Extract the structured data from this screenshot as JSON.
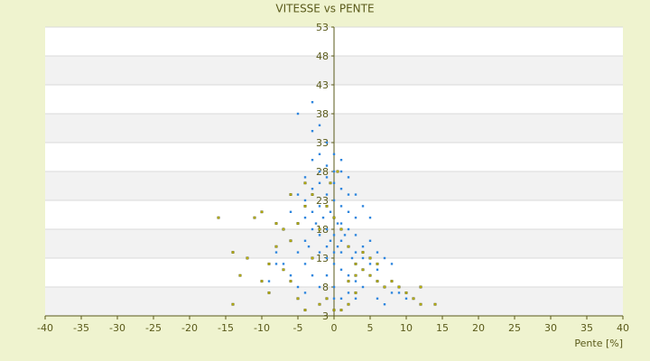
{
  "chart_data": {
    "type": "scatter",
    "title": "VITESSE vs PENTE",
    "x_label": "Pente [%]",
    "xlim": [
      -40,
      40
    ],
    "xticks": [
      -40,
      -35,
      -30,
      -25,
      -20,
      -15,
      -10,
      -5,
      0,
      5,
      10,
      15,
      20,
      25,
      30,
      35,
      40
    ],
    "ylim": [
      3,
      53
    ],
    "yticks": [
      3,
      8,
      13,
      18,
      23,
      28,
      33,
      38,
      43,
      48,
      53
    ],
    "grid": true,
    "series": [
      {
        "color": "#2e86de",
        "x": [
          -3,
          -2,
          -1,
          0,
          1,
          -1,
          0,
          1,
          2,
          -2,
          -3,
          -4,
          0,
          1,
          2,
          3,
          -1,
          -2,
          0,
          1,
          2,
          3,
          4,
          5,
          -3,
          -4,
          -5,
          -2,
          -1,
          0,
          1,
          2,
          3,
          4,
          6,
          7,
          8,
          9,
          10,
          5,
          6,
          4,
          3,
          -1,
          0,
          0,
          -2,
          -3,
          -4,
          -6,
          -5,
          -4,
          -3,
          -2,
          -1,
          0,
          -1,
          -3,
          -2,
          -5,
          -3,
          1,
          2,
          1,
          3,
          4,
          5,
          3,
          2,
          0,
          -2,
          -4,
          -5,
          -6,
          -7,
          -8,
          -7,
          -6,
          -8,
          -5,
          1,
          2,
          3,
          6,
          7,
          4,
          5,
          6,
          7,
          8,
          -0.5,
          0.5,
          -1.5,
          1.5,
          0.5,
          -0.5,
          2.5,
          -2.5,
          -3.5,
          1,
          -1,
          0,
          3,
          -9,
          -4
        ],
        "values": [
          30,
          28,
          27,
          26,
          25,
          24,
          23,
          22,
          21,
          22,
          21,
          20,
          20,
          19,
          18,
          17,
          18,
          17,
          17,
          16,
          15,
          14,
          13,
          12,
          18,
          16,
          14,
          14,
          13,
          12,
          11,
          10,
          9,
          8,
          9,
          8,
          7,
          7,
          6,
          10,
          11,
          11,
          12,
          10,
          8,
          6,
          8,
          10,
          12,
          16,
          19,
          23,
          25,
          26,
          29,
          31,
          33,
          35,
          36,
          38,
          40,
          30,
          27,
          28,
          24,
          22,
          20,
          20,
          24,
          28,
          31,
          27,
          24,
          21,
          18,
          14,
          12,
          10,
          12,
          8,
          6,
          7,
          6,
          6,
          5,
          15,
          16,
          14,
          13,
          12,
          21,
          19,
          20,
          17,
          15,
          16,
          13,
          19,
          15,
          14,
          15,
          14,
          10,
          9,
          7
        ]
      },
      {
        "color": "#b8b000",
        "x": [
          -16,
          -14,
          -11,
          -10,
          -12,
          -10,
          -9,
          -8,
          -7,
          -6,
          -5,
          -4,
          -3,
          -6,
          -5,
          -4,
          -14,
          -9,
          -7,
          -3,
          -2,
          -1,
          0,
          1,
          2,
          3,
          4,
          5,
          6,
          7,
          8,
          9,
          10,
          12,
          11,
          12,
          14,
          3,
          2,
          1,
          0,
          -1,
          -2,
          4,
          5,
          6,
          -0.5,
          0.5,
          2,
          3,
          -8,
          -13,
          -4,
          -6
        ],
        "values": [
          20,
          14,
          20,
          21,
          13,
          9,
          12,
          15,
          18,
          16,
          19,
          22,
          24,
          9,
          6,
          4,
          5,
          7,
          11,
          13,
          18,
          22,
          20,
          18,
          15,
          12,
          11,
          10,
          9,
          8,
          9,
          8,
          7,
          8,
          6,
          5,
          5,
          7,
          5,
          4,
          4,
          6,
          5,
          14,
          13,
          12,
          26,
          28,
          9,
          10,
          19,
          10,
          26,
          24
        ]
      }
    ]
  }
}
